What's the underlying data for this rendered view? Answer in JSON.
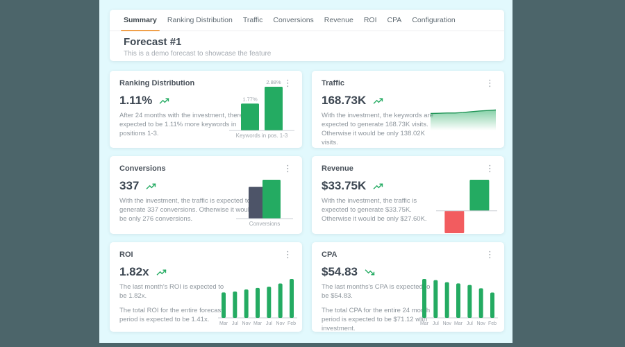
{
  "app": {
    "background": "#4c656a",
    "panel_background": "#e2f9fd"
  },
  "tabs": [
    {
      "label": "Summary",
      "active": true
    },
    {
      "label": "Ranking Distribution",
      "active": false
    },
    {
      "label": "Traffic",
      "active": false
    },
    {
      "label": "Conversions",
      "active": false
    },
    {
      "label": "Revenue",
      "active": false
    },
    {
      "label": "ROI",
      "active": false
    },
    {
      "label": "CPA",
      "active": false
    },
    {
      "label": "Configuration",
      "active": false
    }
  ],
  "header": {
    "title": "Forecast #1",
    "subtitle": "This is a demo forecast to showcase the feature"
  },
  "icons": {
    "kebab": "⋮",
    "trend_up": "trending-up-arrow",
    "trend_down": "trending-down-arrow"
  },
  "colors": {
    "green": "#24ab62",
    "green_line": "#1f9456",
    "slate": "#4d5468",
    "red": "#f25c5f",
    "accent_orange": "#f0a04a",
    "axis": "#c9ced3"
  },
  "cards": [
    {
      "title": "Ranking Distribution",
      "value": "1.11%",
      "trend": "up",
      "description": "After 24 months with the investment, there's expected to be 1.11% more keywords in positions 1-3.",
      "chart": {
        "type": "labeled-bars",
        "values": [
          1.77,
          2.88
        ],
        "labels": [
          "1.77%",
          "2.88%"
        ],
        "caption": "Keywords in pos. 1-3",
        "color": "green"
      }
    },
    {
      "title": "Traffic",
      "value": "168.73K",
      "trend": "up",
      "description": "With the investment, the keywords are expected to generate 168.73K visits. Otherwise it would be only 138.02K visits.",
      "chart": {
        "type": "area",
        "points": [
          0.32,
          0.31,
          0.3,
          0.3,
          0.28,
          0.25,
          0.22,
          0.2,
          0.18
        ],
        "with_investment": "168.73K",
        "without_investment": "138.02K"
      }
    },
    {
      "title": "Conversions",
      "value": "337",
      "trend": "up",
      "description": "With the investment, the traffic is expected to generate 337 conversions. Otherwise it would be only 276 conversions.",
      "chart": {
        "type": "pair-bars",
        "values": [
          276,
          337
        ],
        "colors": [
          "slate",
          "green"
        ],
        "caption": "Conversions"
      }
    },
    {
      "title": "Revenue",
      "value": "$33.75K",
      "trend": "up",
      "description": "With the investment, the traffic is expected to generate $33.75K. Otherwise it would be only $27.60K.",
      "chart": {
        "type": "diverging",
        "values": [
          -0.72,
          1.0
        ],
        "colors": [
          "red",
          "green"
        ]
      }
    },
    {
      "title": "ROI",
      "value": "1.82x",
      "trend": "up",
      "description": "The last month's ROI is expected to be 1.82x.",
      "description2": "The total ROI for the entire forecast period is expected to be 1.41x.",
      "chart": {
        "type": "mini-bars",
        "values": [
          1.19,
          1.23,
          1.33,
          1.4,
          1.46,
          1.61,
          1.82
        ],
        "xlabels": [
          "Mar",
          "Jul",
          "Nov",
          "Mar",
          "Jul",
          "Nov",
          "Feb"
        ],
        "color": "green"
      }
    },
    {
      "title": "CPA",
      "value": "$54.83",
      "trend": "down",
      "description": "The last months's CPA is expected to be $54.83.",
      "description2": "The total CPA for the entire 24 month period is expected to be $71.12 with investment.",
      "chart": {
        "type": "mini-bars",
        "values": [
          84.0,
          81.5,
          77.0,
          74.5,
          71.0,
          64.0,
          54.83
        ],
        "xlabels": [
          "Mar",
          "Jul",
          "Nov",
          "Mar",
          "Jul",
          "Nov",
          "Feb"
        ],
        "color": "green"
      }
    }
  ]
}
